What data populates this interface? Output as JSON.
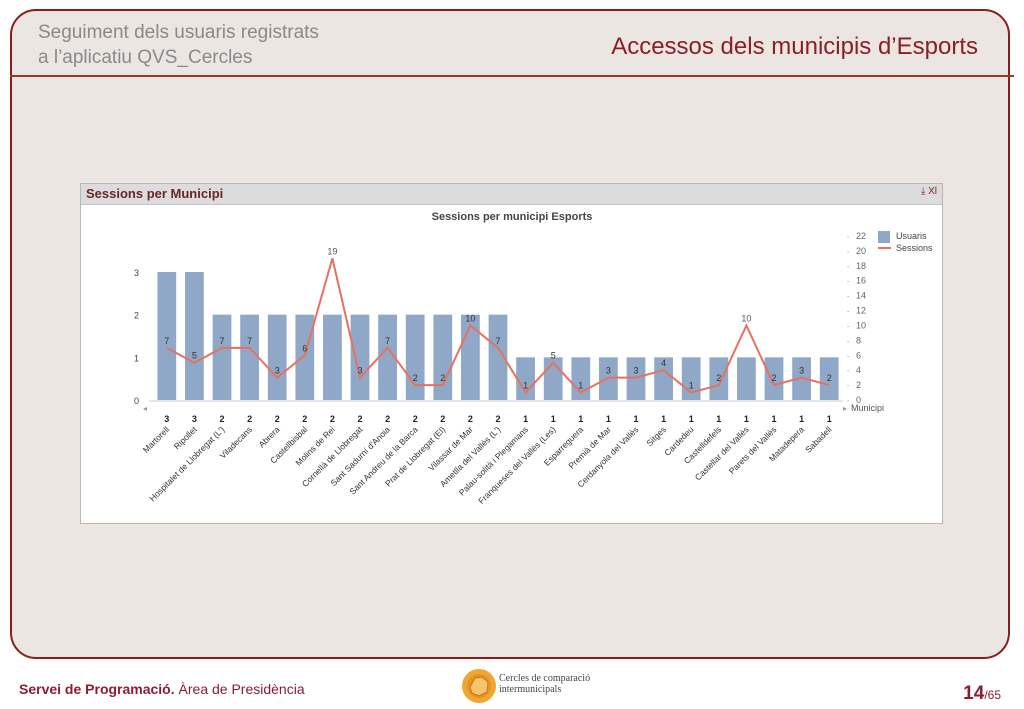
{
  "slide": {
    "subtitle_line1": "Seguiment dels usuaris registrats",
    "subtitle_line2": "a l’aplicatiu QVS_Cercles",
    "title": "Accessos dels municipis d’Esports"
  },
  "panel": {
    "title": "Sessions per Municipi",
    "icons": [
      "xl-export-icon",
      "close-icon"
    ],
    "icon_glyphs": "⤓ Xl"
  },
  "chart_data": {
    "type": "bar",
    "title": "Sessions per municipi Esports",
    "xlabel": "Municipi",
    "categories": [
      "Martorell",
      "Ripollet",
      "Hospitalet de Llobregat (L')",
      "Viladecans",
      "Abrera",
      "Castellbisbal",
      "Molins de Rei",
      "Cornellà de Llobregat",
      "Sant Sadurní d'Anoia",
      "Sant Andreu de la Barca",
      "Prat de Llobregat (El)",
      "Vilassar de Mar",
      "Ametlla del Vallès (L')",
      "Palau-solità i Plegamans",
      "Franqueses del Vallès (Les)",
      "Esparreguera",
      "Premià de Mar",
      "Cerdanyola del Vallès",
      "Sitges",
      "Cardedeu",
      "Castelldefels",
      "Castellar del Vallès",
      "Parets del Vallès",
      "Matadepera",
      "Sabadell"
    ],
    "series": [
      {
        "name": "Usuaris",
        "type": "bar",
        "axis": "left",
        "color": "#8fa8c8",
        "values": [
          3,
          3,
          2,
          2,
          2,
          2,
          2,
          2,
          2,
          2,
          2,
          2,
          2,
          1,
          1,
          1,
          1,
          1,
          1,
          1,
          1,
          1,
          1,
          1,
          1
        ]
      },
      {
        "name": "Sessions",
        "type": "line",
        "axis": "right",
        "color": "#e8705f",
        "values": [
          7,
          5,
          7,
          7,
          3,
          6,
          19,
          3,
          7,
          2,
          2,
          10,
          7,
          1,
          5,
          1,
          3,
          3,
          4,
          1,
          2,
          10,
          2,
          3,
          2
        ]
      }
    ],
    "ylim_left": [
      0,
      3
    ],
    "yticks_left": [
      0,
      1,
      2,
      3
    ],
    "ylim_right": [
      0,
      22
    ],
    "yticks_right": [
      0,
      2,
      4,
      6,
      8,
      10,
      12,
      14,
      16,
      18,
      20,
      22
    ],
    "legend_position": "top-right",
    "grid": false
  },
  "footer": {
    "dept_bold": "Servei de Programació.",
    "dept_rest": " Àrea de Presidència",
    "logo_line1": "Cercles de comparació",
    "logo_line2": "intermunicipals",
    "page_current": "14",
    "page_total": "/65"
  }
}
